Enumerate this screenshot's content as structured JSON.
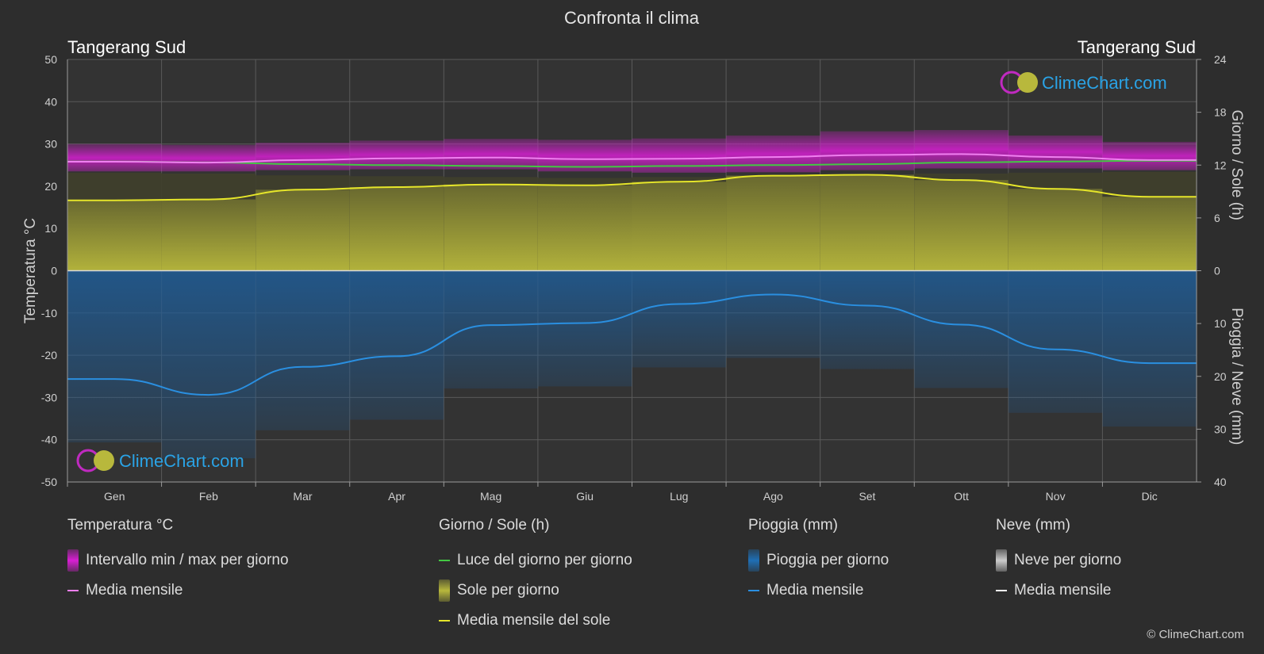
{
  "title": "Confronta il clima",
  "location_left": "Tangerang Sud",
  "location_right": "Tangerang Sud",
  "logo_text": "ClimeChart.com",
  "copyright": "© ClimeChart.com",
  "colors": {
    "background": "#2d2d2d",
    "temp_range": "#d81fd3",
    "temp_mean": "#f07ff0",
    "daylight": "#43c843",
    "sunshine": "#b8b83c",
    "sunshine_mean": "#e6e62a",
    "rain": "#1f5c96",
    "rain_mean": "#2a8fe0",
    "snow": "#cccccc",
    "snow_mean": "#ffffff"
  },
  "chart_data": {
    "type": "area",
    "title": "Confronta il clima",
    "categories": [
      "Gen",
      "Feb",
      "Mar",
      "Apr",
      "Mag",
      "Giu",
      "Lug",
      "Ago",
      "Set",
      "Ott",
      "Nov",
      "Dic"
    ],
    "axes": {
      "left": {
        "label": "Temperatura °C",
        "ylim": [
          -50,
          50
        ],
        "ticks": [
          50,
          40,
          30,
          20,
          10,
          0,
          -10,
          -20,
          -30,
          -40,
          -50
        ]
      },
      "right_top": {
        "label": "Giorno / Sole (h)",
        "ylim": [
          0,
          24
        ],
        "ticks": [
          24,
          18,
          12,
          6,
          0
        ]
      },
      "right_bottom": {
        "label": "Pioggia / Neve (mm)",
        "ylim": [
          0,
          40
        ],
        "ticks": [
          0,
          10,
          20,
          30,
          40
        ]
      }
    },
    "grid": true,
    "series": [
      {
        "name": "Intervallo min / max per giorno",
        "kind": "band",
        "unit": "°C",
        "min": [
          23.5,
          23.5,
          23.8,
          24.0,
          24.0,
          23.5,
          23.2,
          23.3,
          23.8,
          24.2,
          24.2,
          23.8
        ],
        "max": [
          30.0,
          29.8,
          30.3,
          30.8,
          31.2,
          31.0,
          31.3,
          32.0,
          33.0,
          33.3,
          32.0,
          30.5
        ]
      },
      {
        "name": "Media mensile",
        "kind": "line",
        "unit": "°C",
        "values": [
          25.8,
          25.6,
          26.2,
          26.6,
          26.8,
          26.4,
          26.5,
          26.9,
          27.4,
          27.6,
          26.9,
          26.2
        ]
      },
      {
        "name": "Luce del giorno per giorno",
        "kind": "line",
        "unit": "h",
        "values": [
          12.4,
          12.3,
          12.1,
          12.0,
          11.9,
          11.8,
          11.9,
          12.0,
          12.1,
          12.3,
          12.4,
          12.5
        ]
      },
      {
        "name": "Sole per giorno",
        "kind": "bars",
        "unit": "h",
        "values": [
          8.0,
          8.1,
          9.2,
          9.5,
          9.8,
          9.7,
          10.1,
          10.8,
          10.9,
          10.3,
          9.3,
          8.4
        ]
      },
      {
        "name": "Media mensile del sole",
        "kind": "line",
        "unit": "h",
        "values": [
          8.0,
          8.1,
          9.2,
          9.5,
          9.8,
          9.7,
          10.1,
          10.8,
          10.9,
          10.3,
          9.3,
          8.4
        ]
      },
      {
        "name": "Pioggia per giorno",
        "kind": "bars",
        "unit": "mm",
        "values": [
          20.5,
          23.5,
          18.2,
          16.2,
          10.3,
          9.9,
          6.3,
          4.5,
          6.6,
          10.2,
          14.9,
          17.5
        ]
      },
      {
        "name": "Media mensile",
        "kind": "line",
        "unit": "mm",
        "values": [
          20.5,
          23.5,
          18.2,
          16.2,
          10.3,
          9.9,
          6.3,
          4.5,
          6.6,
          10.2,
          14.9,
          17.5
        ]
      },
      {
        "name": "Neve per giorno",
        "kind": "bars",
        "unit": "mm",
        "values": [
          0,
          0,
          0,
          0,
          0,
          0,
          0,
          0,
          0,
          0,
          0,
          0
        ]
      },
      {
        "name": "Media mensile",
        "kind": "line",
        "unit": "mm",
        "values": [
          0,
          0,
          0,
          0,
          0,
          0,
          0,
          0,
          0,
          0,
          0,
          0
        ]
      }
    ]
  },
  "legend": {
    "groups": [
      {
        "title": "Temperatura °C",
        "items": [
          {
            "label": "Intervallo min / max per giorno",
            "swatch": "rect",
            "color": "#d81fd3"
          },
          {
            "label": "Media mensile",
            "swatch": "line",
            "color": "#f07ff0"
          }
        ]
      },
      {
        "title": "Giorno / Sole (h)",
        "items": [
          {
            "label": "Luce del giorno per giorno",
            "swatch": "line",
            "color": "#43c843"
          },
          {
            "label": "Sole per giorno",
            "swatch": "rect",
            "color": "#b8b83c"
          },
          {
            "label": "Media mensile del sole",
            "swatch": "line",
            "color": "#e6e62a"
          }
        ]
      },
      {
        "title": "Pioggia (mm)",
        "items": [
          {
            "label": "Pioggia per giorno",
            "swatch": "rect",
            "color": "#1f6fb5"
          },
          {
            "label": "Media mensile",
            "swatch": "line",
            "color": "#2a8fe0"
          }
        ]
      },
      {
        "title": "Neve (mm)",
        "items": [
          {
            "label": "Neve per giorno",
            "swatch": "rect",
            "color": "#cccccc"
          },
          {
            "label": "Media mensile",
            "swatch": "line",
            "color": "#ffffff"
          }
        ]
      }
    ]
  }
}
